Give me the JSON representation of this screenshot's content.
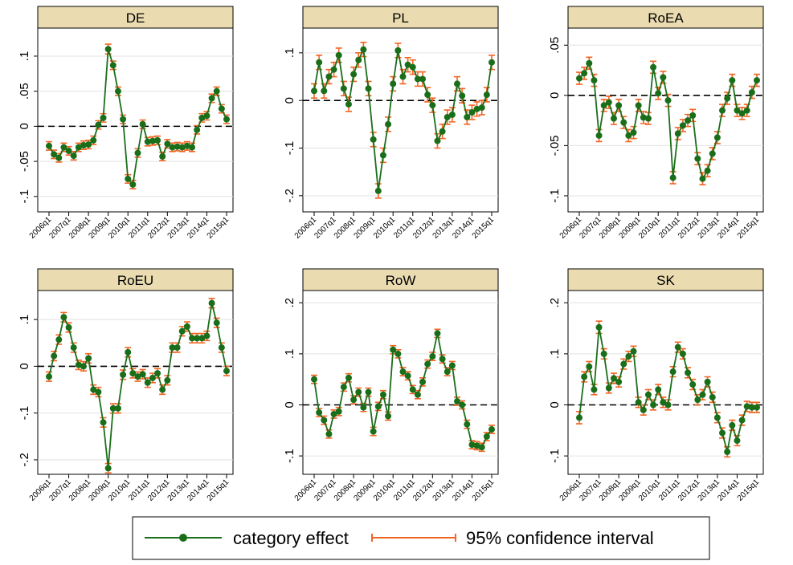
{
  "legend": {
    "items": [
      {
        "label": "category effect",
        "color": "#1a6e1a"
      },
      {
        "label": "95% confidence interval",
        "color": "#f26522"
      }
    ]
  },
  "chart_data": [
    {
      "type": "line",
      "title": "DE",
      "categories": [
        "2006q1",
        null,
        null,
        null,
        "2007q1",
        null,
        null,
        null,
        "2008q1",
        null,
        null,
        null,
        "2009q1",
        null,
        null,
        null,
        "2010q1",
        null,
        null,
        null,
        "2011q1",
        null,
        null,
        null,
        "2012q1",
        null,
        null,
        null,
        "2013q1",
        null,
        null,
        null,
        "2014q1",
        null,
        null,
        null,
        "2015q1"
      ],
      "series": [
        {
          "values": [
            -0.028,
            -0.04,
            -0.045,
            -0.03,
            -0.035,
            -0.042,
            -0.03,
            -0.027,
            -0.026,
            -0.02,
            0.002,
            0.012,
            0.11,
            0.087,
            0.05,
            0.01,
            -0.075,
            -0.083,
            -0.038,
            0.003,
            -0.022,
            -0.021,
            -0.02,
            -0.043,
            -0.025,
            -0.03,
            -0.029,
            -0.03,
            -0.028,
            -0.03,
            -0.005,
            0.012,
            0.015,
            0.04,
            0.05,
            0.025,
            0.01
          ],
          "errors": [
            0.006,
            0.006,
            0.006,
            0.006,
            0.006,
            0.006,
            0.006,
            0.006,
            0.006,
            0.006,
            0.006,
            0.006,
            0.007,
            0.006,
            0.006,
            0.006,
            0.006,
            0.006,
            0.006,
            0.006,
            0.006,
            0.006,
            0.006,
            0.006,
            0.006,
            0.006,
            0.006,
            0.006,
            0.006,
            0.006,
            0.006,
            0.006,
            0.006,
            0.006,
            0.006,
            0.006,
            0.006
          ]
        }
      ],
      "ylim": [
        -0.122,
        0.14
      ],
      "yticks": [
        {
          "value": -0.1,
          "label": "-.1"
        },
        {
          "value": -0.05,
          "label": "-.05"
        },
        0,
        {
          "value": 0.05,
          "label": ".05"
        },
        {
          "value": 0.1,
          "label": ".1"
        }
      ],
      "reference_line": 0,
      "grid": true
    },
    {
      "type": "line",
      "title": "PL",
      "categories": [
        "2006q1",
        null,
        null,
        null,
        "2007q1",
        null,
        null,
        null,
        "2008q1",
        null,
        null,
        null,
        "2009q1",
        null,
        null,
        null,
        "2010q1",
        null,
        null,
        null,
        "2011q1",
        null,
        null,
        null,
        "2012q1",
        null,
        null,
        null,
        "2013q1",
        null,
        null,
        null,
        "2014q1",
        null,
        null,
        null,
        "2015q1"
      ],
      "series": [
        {
          "values": [
            0.02,
            0.08,
            0.02,
            0.05,
            0.065,
            0.095,
            0.025,
            -0.008,
            0.055,
            0.085,
            0.107,
            0.025,
            -0.082,
            -0.19,
            -0.115,
            -0.05,
            0.035,
            0.105,
            0.05,
            0.075,
            0.07,
            0.045,
            0.045,
            0.012,
            -0.01,
            -0.085,
            -0.065,
            -0.035,
            -0.03,
            0.035,
            0.01,
            -0.035,
            -0.025,
            -0.018,
            -0.015,
            0.012,
            0.08
          ],
          "errors": [
            0.015,
            0.015,
            0.015,
            0.015,
            0.015,
            0.015,
            0.015,
            0.015,
            0.015,
            0.015,
            0.015,
            0.015,
            0.015,
            0.015,
            0.015,
            0.015,
            0.015,
            0.015,
            0.015,
            0.015,
            0.015,
            0.015,
            0.015,
            0.015,
            0.015,
            0.015,
            0.015,
            0.015,
            0.015,
            0.015,
            0.015,
            0.015,
            0.015,
            0.015,
            0.015,
            0.015,
            0.015
          ]
        }
      ],
      "ylim": [
        -0.234,
        0.152
      ],
      "yticks": [
        {
          "value": -0.2,
          "label": "-.2"
        },
        {
          "value": -0.1,
          "label": "-.1"
        },
        0,
        {
          "value": 0.1,
          "label": ".1"
        }
      ],
      "reference_line": 0,
      "grid": true
    },
    {
      "type": "line",
      "title": "RoEA",
      "categories": [
        "2006q1",
        null,
        null,
        null,
        "2007q1",
        null,
        null,
        null,
        "2008q1",
        null,
        null,
        null,
        "2009q1",
        null,
        null,
        null,
        "2010q1",
        null,
        null,
        null,
        "2011q1",
        null,
        null,
        null,
        "2012q1",
        null,
        null,
        null,
        "2013q1",
        null,
        null,
        null,
        "2014q1",
        null,
        null,
        null,
        "2015q1"
      ],
      "series": [
        {
          "values": [
            0.017,
            0.022,
            0.032,
            0.015,
            -0.04,
            -0.01,
            -0.007,
            -0.023,
            -0.01,
            -0.027,
            -0.04,
            -0.037,
            -0.01,
            -0.022,
            -0.023,
            0.028,
            0.002,
            0.018,
            -0.005,
            -0.082,
            -0.038,
            -0.03,
            -0.025,
            -0.02,
            -0.063,
            -0.083,
            -0.075,
            -0.058,
            -0.042,
            -0.015,
            -0.003,
            0.015,
            -0.015,
            -0.018,
            -0.015,
            0.003,
            0.015
          ],
          "errors": [
            0.006,
            0.006,
            0.006,
            0.006,
            0.006,
            0.006,
            0.006,
            0.006,
            0.006,
            0.006,
            0.006,
            0.006,
            0.006,
            0.006,
            0.006,
            0.006,
            0.006,
            0.006,
            0.006,
            0.006,
            0.006,
            0.006,
            0.006,
            0.006,
            0.006,
            0.006,
            0.006,
            0.006,
            0.006,
            0.006,
            0.006,
            0.006,
            0.006,
            0.006,
            0.006,
            0.006,
            0.006
          ]
        }
      ],
      "ylim": [
        -0.116,
        0.067
      ],
      "yticks": [
        {
          "value": -0.1,
          "label": "-.1"
        },
        {
          "value": -0.05,
          "label": "-.05"
        },
        0,
        {
          "value": 0.05,
          "label": ".05"
        }
      ],
      "reference_line": 0,
      "grid": true
    },
    {
      "type": "line",
      "title": "RoEU",
      "categories": [
        "2006q1",
        null,
        null,
        null,
        "2007q1",
        null,
        null,
        null,
        "2008q1",
        null,
        null,
        null,
        "2009q1",
        null,
        null,
        null,
        "2010q1",
        null,
        null,
        null,
        "2011q1",
        null,
        null,
        null,
        "2012q1",
        null,
        null,
        null,
        "2013q1",
        null,
        null,
        null,
        "2014q1",
        null,
        null,
        null,
        "2015q1"
      ],
      "series": [
        {
          "values": [
            -0.022,
            0.022,
            0.057,
            0.105,
            0.083,
            0.04,
            0.003,
            0.0,
            0.017,
            -0.05,
            -0.055,
            -0.12,
            -0.218,
            -0.09,
            -0.09,
            -0.018,
            0.03,
            -0.015,
            -0.022,
            -0.017,
            -0.035,
            -0.025,
            -0.015,
            -0.05,
            -0.03,
            0.04,
            0.04,
            0.075,
            0.085,
            0.06,
            0.06,
            0.06,
            0.065,
            0.135,
            0.093,
            0.04,
            -0.01
          ],
          "errors": [
            0.01,
            0.01,
            0.01,
            0.01,
            0.01,
            0.01,
            0.01,
            0.01,
            0.01,
            0.01,
            0.01,
            0.01,
            0.01,
            0.01,
            0.01,
            0.01,
            0.01,
            0.01,
            0.01,
            0.01,
            0.01,
            0.01,
            0.01,
            0.01,
            0.01,
            0.01,
            0.01,
            0.01,
            0.01,
            0.01,
            0.01,
            0.01,
            0.01,
            0.01,
            0.01,
            0.01,
            0.01
          ]
        }
      ],
      "ylim": [
        -0.231,
        0.162
      ],
      "yticks": [
        {
          "value": -0.2,
          "label": "-.2"
        },
        {
          "value": -0.1,
          "label": "-.1"
        },
        0,
        {
          "value": 0.1,
          "label": ".1"
        }
      ],
      "reference_line": 0,
      "grid": true
    },
    {
      "type": "line",
      "title": "RoW",
      "categories": [
        "2006q1",
        null,
        null,
        null,
        "2007q1",
        null,
        null,
        null,
        "2008q1",
        null,
        null,
        null,
        "2009q1",
        null,
        null,
        null,
        "2010q1",
        null,
        null,
        null,
        "2011q1",
        null,
        null,
        null,
        "2012q1",
        null,
        null,
        null,
        "2013q1",
        null,
        null,
        null,
        "2014q1",
        null,
        null,
        null,
        "2015q1"
      ],
      "series": [
        {
          "values": [
            0.05,
            -0.015,
            -0.03,
            -0.057,
            -0.018,
            -0.013,
            0.035,
            0.053,
            0.01,
            0.025,
            -0.005,
            0.025,
            -0.052,
            -0.003,
            0.02,
            -0.022,
            0.108,
            0.1,
            0.065,
            0.057,
            0.03,
            0.02,
            0.045,
            0.08,
            0.095,
            0.14,
            0.09,
            0.065,
            0.077,
            0.007,
            0.0,
            -0.038,
            -0.078,
            -0.08,
            -0.083,
            -0.062,
            -0.048
          ],
          "errors": [
            0.008,
            0.008,
            0.008,
            0.008,
            0.008,
            0.008,
            0.008,
            0.008,
            0.008,
            0.008,
            0.008,
            0.008,
            0.008,
            0.008,
            0.008,
            0.008,
            0.008,
            0.008,
            0.008,
            0.008,
            0.008,
            0.008,
            0.008,
            0.008,
            0.008,
            0.008,
            0.008,
            0.008,
            0.008,
            0.008,
            0.008,
            0.008,
            0.008,
            0.008,
            0.008,
            0.008,
            0.008
          ]
        }
      ],
      "ylim": [
        -0.136,
        0.224
      ],
      "yticks": [
        {
          "value": -0.1,
          "label": "-.1"
        },
        0,
        {
          "value": 0.1,
          "label": ".1"
        },
        {
          "value": 0.2,
          "label": ".2"
        }
      ],
      "reference_line": 0,
      "grid": true
    },
    {
      "type": "line",
      "title": "SK",
      "categories": [
        "2006q1",
        null,
        null,
        null,
        "2007q1",
        null,
        null,
        null,
        "2008q1",
        null,
        null,
        null,
        "2009q1",
        null,
        null,
        null,
        "2010q1",
        null,
        null,
        null,
        "2011q1",
        null,
        null,
        null,
        "2012q1",
        null,
        null,
        null,
        "2013q1",
        null,
        null,
        null,
        "2014q1",
        null,
        null,
        null,
        "2015q1"
      ],
      "series": [
        {
          "values": [
            -0.025,
            0.055,
            0.075,
            0.03,
            0.152,
            0.1,
            0.033,
            0.052,
            0.045,
            0.08,
            0.095,
            0.105,
            0.005,
            -0.01,
            0.02,
            0.0,
            0.03,
            0.005,
            0.0,
            0.065,
            0.113,
            0.1,
            0.063,
            0.04,
            0.01,
            0.02,
            0.045,
            0.015,
            -0.025,
            -0.055,
            -0.092,
            -0.04,
            -0.07,
            -0.03,
            -0.003,
            -0.005,
            -0.005
          ],
          "errors": [
            0.012,
            0.01,
            0.01,
            0.01,
            0.012,
            0.01,
            0.01,
            0.01,
            0.01,
            0.01,
            0.01,
            0.01,
            0.01,
            0.01,
            0.01,
            0.01,
            0.01,
            0.01,
            0.01,
            0.01,
            0.01,
            0.01,
            0.01,
            0.01,
            0.01,
            0.01,
            0.01,
            0.01,
            0.01,
            0.01,
            0.01,
            0.01,
            0.01,
            0.01,
            0.01,
            0.01,
            0.01
          ]
        }
      ],
      "ylim": [
        -0.136,
        0.224
      ],
      "yticks": [
        {
          "value": -0.1,
          "label": "-.1"
        },
        0,
        {
          "value": 0.1,
          "label": ".1"
        },
        {
          "value": 0.2,
          "label": ".2"
        }
      ],
      "reference_line": 0,
      "grid": true
    }
  ]
}
